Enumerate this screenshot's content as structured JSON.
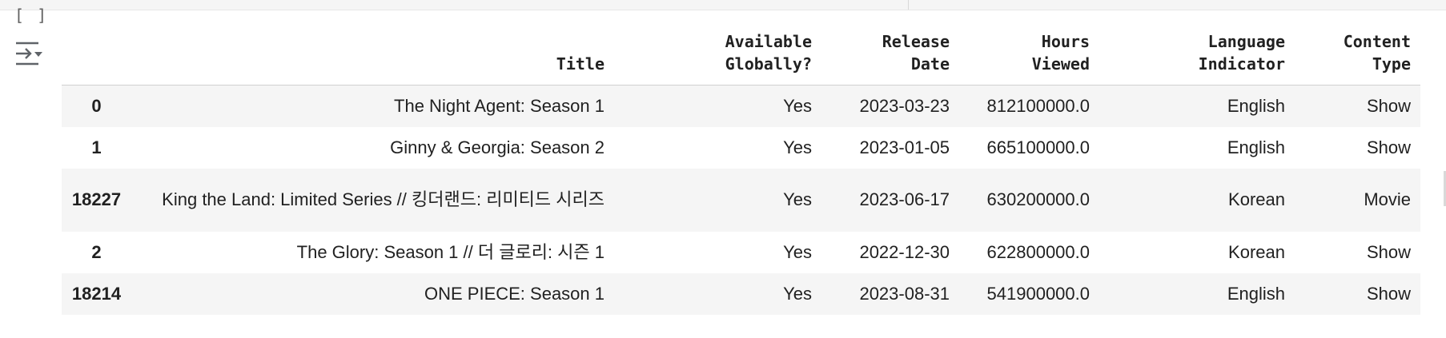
{
  "cell": {
    "bracket": "[ ]",
    "output_icon": "output-collapse-icon"
  },
  "table": {
    "index_header": "",
    "columns": [
      [
        "Title"
      ],
      [
        "Available",
        "Globally?"
      ],
      [
        "Release",
        "Date"
      ],
      [
        "Hours",
        "Viewed"
      ],
      [
        "Language",
        "Indicator"
      ],
      [
        "Content",
        "Type"
      ]
    ],
    "rows": [
      {
        "index": "0",
        "title": "The Night Agent: Season 1",
        "available": "Yes",
        "release": "2023-03-23",
        "hours": "812100000.0",
        "language": "English",
        "type": "Show"
      },
      {
        "index": "1",
        "title": "Ginny & Georgia: Season 2",
        "available": "Yes",
        "release": "2023-01-05",
        "hours": "665100000.0",
        "language": "English",
        "type": "Show"
      },
      {
        "index": "18227",
        "title": "King the Land: Limited Series // 킹더랜드: 리미티드 시리즈",
        "available": "Yes",
        "release": "2023-06-17",
        "hours": "630200000.0",
        "language": "Korean",
        "type": "Movie"
      },
      {
        "index": "2",
        "title": "The Glory: Season 1 // 더 글로리: 시즌 1",
        "available": "Yes",
        "release": "2022-12-30",
        "hours": "622800000.0",
        "language": "Korean",
        "type": "Show"
      },
      {
        "index": "18214",
        "title": "ONE PIECE: Season 1",
        "available": "Yes",
        "release": "2023-08-31",
        "hours": "541900000.0",
        "language": "English",
        "type": "Show"
      }
    ]
  }
}
